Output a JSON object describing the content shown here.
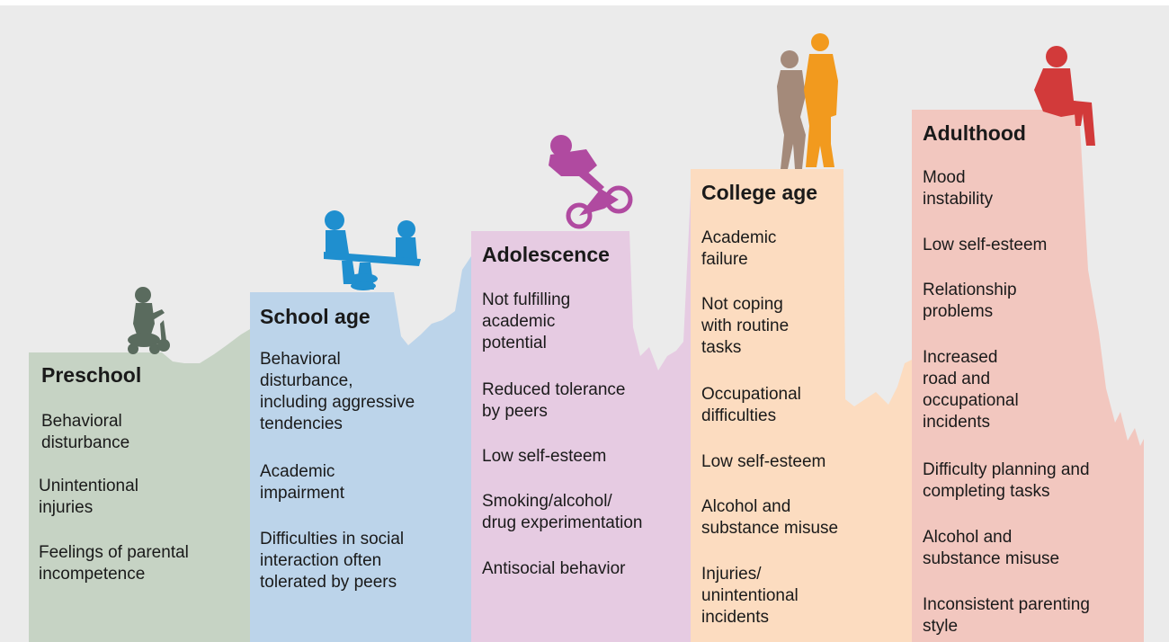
{
  "stages": [
    {
      "title": "Preschool",
      "color": "#c6d3c4",
      "icon": "child-on-ride-toy-icon",
      "icon_color": "#5a6b5e",
      "items": [
        "Behavioral\ndisturbance",
        "Unintentional\ninjuries",
        "Feelings of parental\nincompetence"
      ]
    },
    {
      "title": "School age",
      "color": "#bcd4ea",
      "icon": "children-on-seesaw-icon",
      "icon_color": "#1f8fcf",
      "items": [
        "Behavioral\ndisturbance,\nincluding aggressive\ntendencies",
        "Academic\nimpairment",
        "Difficulties in social\ninteraction often\ntolerated by peers"
      ]
    },
    {
      "title": "Adolescence",
      "color": "#e6cbe2",
      "icon": "bmx-rider-icon",
      "icon_color": "#b04aa0",
      "items": [
        "Not fulfilling\nacademic\npotential",
        "Reduced tolerance\nby peers",
        "Low self-esteem",
        "Smoking/alcohol/\ndrug experimentation",
        "Antisocial behavior"
      ]
    },
    {
      "title": "College age",
      "color": "#fcdcc0",
      "icon": "embracing-couple-icon",
      "icon_color": "#f29a1e",
      "icon_color_2": "#a48a7a",
      "items": [
        "Academic\nfailure",
        "Not coping\nwith routine\ntasks",
        "Occupational\ndifficulties",
        "Low self-esteem",
        "Alcohol and\nsubstance misuse",
        "Injuries/\nunintentional\nincidents"
      ]
    },
    {
      "title": "Adulthood",
      "color": "#f2c7bf",
      "icon": "seated-adult-icon",
      "icon_color": "#d23a3a",
      "items": [
        "Mood\ninstability",
        "Low self-esteem",
        "Relationship\nproblems",
        "Increased\nroad and\noccupational\nincidents",
        "Difficulty planning and\ncompleting tasks",
        "Alcohol and\nsubstance misuse",
        "Inconsistent parenting\nstyle"
      ]
    }
  ],
  "background_color": "#ebebeb"
}
